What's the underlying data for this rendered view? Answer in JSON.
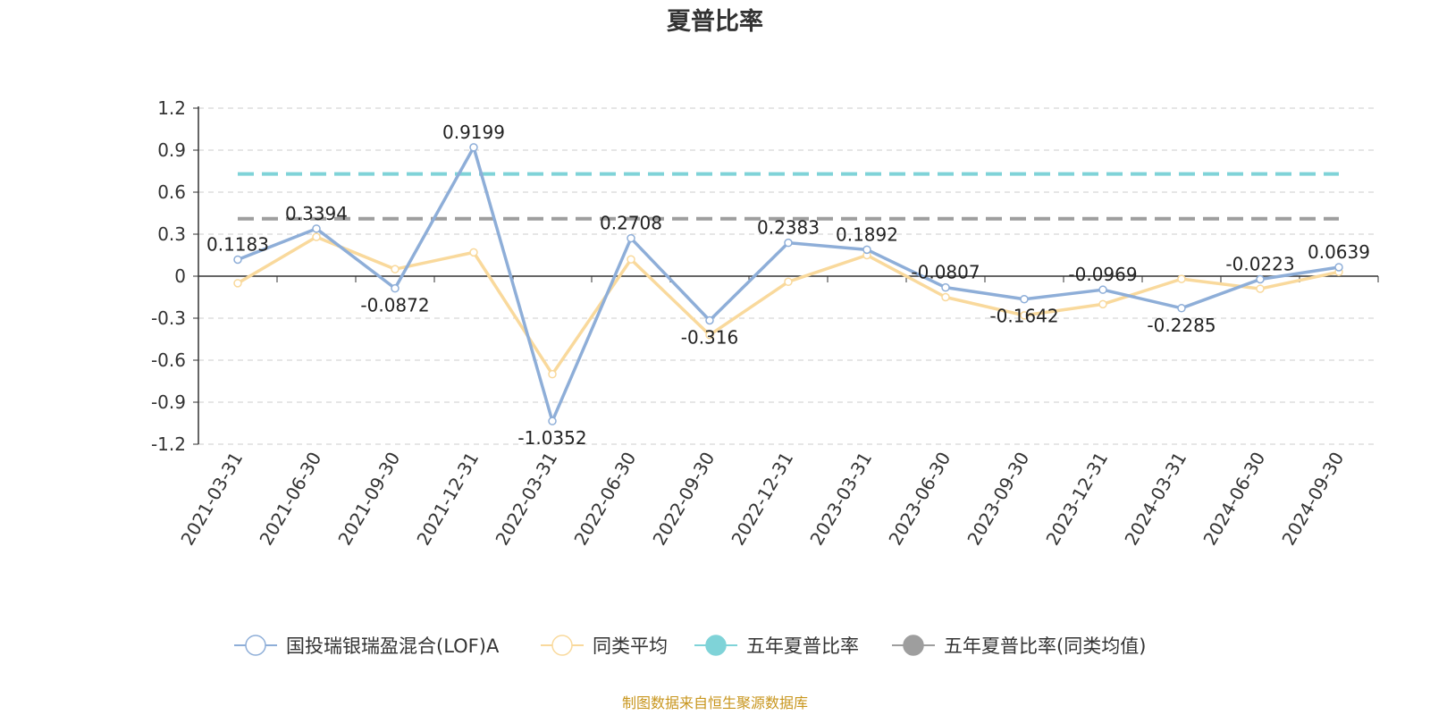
{
  "chart_data": {
    "type": "line",
    "title": "夏普比率",
    "source": "制图数据来自恒生聚源数据库",
    "categories": [
      "2021-03-31",
      "2021-06-30",
      "2021-09-30",
      "2021-12-31",
      "2022-03-31",
      "2022-06-30",
      "2022-09-30",
      "2022-12-31",
      "2023-03-31",
      "2023-06-30",
      "2023-09-30",
      "2023-12-31",
      "2024-03-31",
      "2024-06-30",
      "2024-09-30"
    ],
    "ylim": [
      -1.2,
      1.2
    ],
    "yticks": [
      "1.2",
      "0.9",
      "0.6",
      "0.3",
      "0",
      "-0.3",
      "-0.6",
      "-0.9",
      "-1.2"
    ],
    "ytick_values": [
      1.2,
      0.9,
      0.6,
      0.3,
      0,
      -0.3,
      -0.6,
      -0.9,
      -1.2
    ],
    "grid": true,
    "legend_position": "bottom",
    "series": [
      {
        "name": "国投瑞银瑞盈混合(LOF)A",
        "color": "#8eaed8",
        "values": [
          0.1183,
          0.3394,
          -0.0872,
          0.9199,
          -1.0352,
          0.2708,
          -0.316,
          0.2383,
          0.1892,
          -0.0807,
          -0.1642,
          -0.0969,
          -0.2285,
          -0.0223,
          0.0639
        ],
        "labels": [
          "0.1183",
          "0.3394",
          "-0.0872",
          "0.9199",
          "-1.0352",
          "0.2708",
          "-0.316",
          "0.2383",
          "0.1892",
          "-0.0807",
          "-0.1642",
          "-0.0969",
          "-0.2285",
          "-0.0223",
          "0.0639"
        ]
      },
      {
        "name": "同类平均",
        "color": "#f9d99c",
        "values": [
          -0.05,
          0.28,
          0.05,
          0.17,
          -0.7,
          0.12,
          -0.42,
          -0.04,
          0.15,
          -0.15,
          -0.28,
          -0.2,
          -0.02,
          -0.09,
          0.03
        ]
      },
      {
        "name": "五年夏普比率",
        "color": "#7fd3d8",
        "value": 0.73
      },
      {
        "name": "五年夏普比率(同类均值)",
        "color": "#9e9e9e",
        "value": 0.41
      }
    ]
  }
}
